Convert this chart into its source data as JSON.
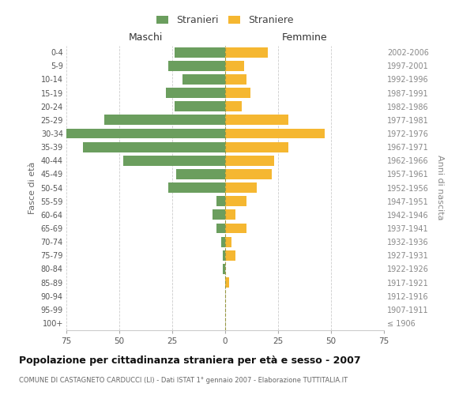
{
  "age_groups": [
    "100+",
    "95-99",
    "90-94",
    "85-89",
    "80-84",
    "75-79",
    "70-74",
    "65-69",
    "60-64",
    "55-59",
    "50-54",
    "45-49",
    "40-44",
    "35-39",
    "30-34",
    "25-29",
    "20-24",
    "15-19",
    "10-14",
    "5-9",
    "0-4"
  ],
  "birth_years": [
    "≤ 1906",
    "1907-1911",
    "1912-1916",
    "1917-1921",
    "1922-1926",
    "1927-1931",
    "1932-1936",
    "1937-1941",
    "1942-1946",
    "1947-1951",
    "1952-1956",
    "1957-1961",
    "1962-1966",
    "1967-1971",
    "1972-1976",
    "1977-1981",
    "1982-1986",
    "1987-1991",
    "1992-1996",
    "1997-2001",
    "2002-2006"
  ],
  "maschi": [
    0,
    0,
    0,
    0,
    1,
    1,
    2,
    4,
    6,
    4,
    27,
    23,
    48,
    67,
    75,
    57,
    24,
    28,
    20,
    27,
    24
  ],
  "femmine": [
    0,
    0,
    0,
    2,
    0,
    5,
    3,
    10,
    5,
    10,
    15,
    22,
    23,
    30,
    47,
    30,
    8,
    12,
    10,
    9,
    20
  ],
  "male_color": "#6b9e5e",
  "female_color": "#f5b731",
  "background_color": "#ffffff",
  "grid_color": "#cccccc",
  "title": "Popolazione per cittadinanza straniera per età e sesso - 2007",
  "subtitle": "COMUNE DI CASTAGNETO CARDUCCI (LI) - Dati ISTAT 1° gennaio 2007 - Elaborazione TUTTITALIA.IT",
  "xlabel_left": "Maschi",
  "xlabel_right": "Femmine",
  "ylabel_left": "Fasce di età",
  "ylabel_right": "Anni di nascita",
  "legend_male": "Stranieri",
  "legend_female": "Straniere",
  "xlim": 75
}
